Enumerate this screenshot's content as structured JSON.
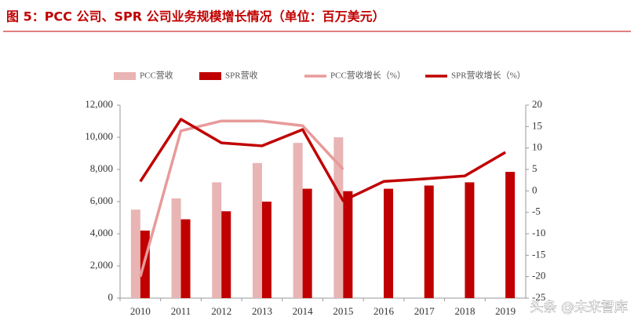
{
  "chart_data": {
    "type": "combo",
    "title": "图 5：PCC 公司、SPR 公司业务规模增长情况（单位：百万美元）",
    "categories": [
      "2010",
      "2011",
      "2012",
      "2013",
      "2014",
      "2015",
      "2016",
      "2017",
      "2018",
      "2019"
    ],
    "series": [
      {
        "name": "PCC营收",
        "type": "bar",
        "color": "#e8b4b4",
        "values": [
          5500,
          6200,
          7200,
          8400,
          9650,
          10000,
          null,
          null,
          null,
          null
        ]
      },
      {
        "name": "SPR营收",
        "type": "bar",
        "color": "#c00000",
        "values": [
          4200,
          4900,
          5400,
          6000,
          6800,
          6650,
          6800,
          7000,
          7200,
          7850
        ]
      },
      {
        "name": "PCC营收增长（%）",
        "type": "line",
        "axis": "y2",
        "color": "#e89a9a",
        "values": [
          -20,
          14,
          16.3,
          16.3,
          15.2,
          5,
          null,
          null,
          null,
          null
        ]
      },
      {
        "name": "SPR营收增长（%）",
        "type": "line",
        "axis": "y2",
        "color": "#c00000",
        "values": [
          2.2,
          16.7,
          11.2,
          10.5,
          14.3,
          -2.3,
          2.2,
          2.8,
          3.5,
          9
        ]
      }
    ],
    "ylim": [
      0,
      12000
    ],
    "yticks": [
      0,
      {
        "value": 2000,
        "label": "2,000"
      },
      {
        "value": 4000,
        "label": "4,000"
      },
      {
        "value": 6000,
        "label": "6,000"
      },
      {
        "value": 8000,
        "label": "8,000"
      },
      {
        "value": 10000,
        "label": "10,000"
      },
      {
        "value": 12000,
        "label": "12,000"
      }
    ],
    "y2lim": [
      -25,
      20
    ],
    "y2ticks": [
      -25,
      -20,
      -15,
      -10,
      -5,
      0,
      5,
      10,
      15,
      20
    ],
    "legend": "top"
  },
  "watermark": "头条 @未来智库"
}
